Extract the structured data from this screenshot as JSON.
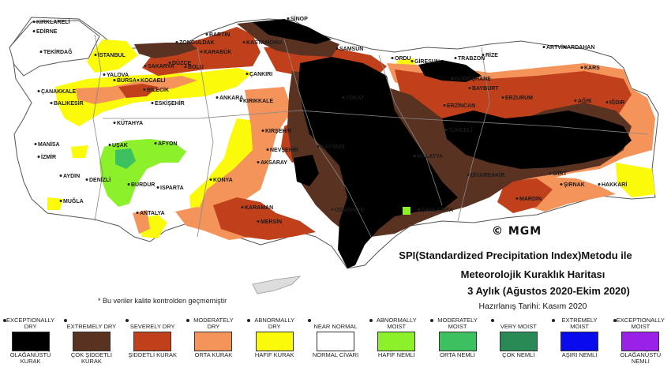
{
  "map": {
    "cities": [
      {
        "name": "KIRKLARELİ",
        "name_key": "c0"
      },
      {
        "name": "EDİRNE",
        "name_key": "c1"
      },
      {
        "name": "TEKİRDAĞ",
        "name_key": "c2"
      },
      {
        "name": "İSTANBUL",
        "name_key": "c3"
      },
      {
        "name": "ÇANAKKALE",
        "name_key": "c4"
      },
      {
        "name": "BALIKESİR",
        "name_key": "c5"
      },
      {
        "name": "BURSA",
        "name_key": "c6"
      },
      {
        "name": "YALOVA",
        "name_key": "c7"
      },
      {
        "name": "KOCAELİ",
        "name_key": "c8"
      },
      {
        "name": "SAKARYA",
        "name_key": "c9"
      },
      {
        "name": "DÜZCE",
        "name_key": "c10"
      },
      {
        "name": "BOLU",
        "name_key": "c11"
      },
      {
        "name": "BİLECİK",
        "name_key": "c12"
      },
      {
        "name": "ESKİŞEHİR",
        "name_key": "c13"
      },
      {
        "name": "KÜTAHYA",
        "name_key": "c14"
      },
      {
        "name": "MANİSA",
        "name_key": "c15"
      },
      {
        "name": "İZMİR",
        "name_key": "c16"
      },
      {
        "name": "AYDIN",
        "name_key": "c17"
      },
      {
        "name": "MUĞLA",
        "name_key": "c18"
      },
      {
        "name": "DENİZLİ",
        "name_key": "c19"
      },
      {
        "name": "UŞAK",
        "name_key": "c20"
      },
      {
        "name": "AFYON",
        "name_key": "c21"
      },
      {
        "name": "BURDUR",
        "name_key": "c22"
      },
      {
        "name": "ISPARTA",
        "name_key": "c23"
      },
      {
        "name": "ANTALYA",
        "name_key": "c24"
      },
      {
        "name": "KONYA",
        "name_key": "c25"
      },
      {
        "name": "KARAMAN",
        "name_key": "c26"
      },
      {
        "name": "MERSİN",
        "name_key": "c27"
      },
      {
        "name": "ANKARA",
        "name_key": "c28"
      },
      {
        "name": "ZONGULDAK",
        "name_key": "c29"
      },
      {
        "name": "BARTIN",
        "name_key": "c30"
      },
      {
        "name": "KARABÜK",
        "name_key": "c31"
      },
      {
        "name": "KASTAMONU",
        "name_key": "c32"
      },
      {
        "name": "SİNOP",
        "name_key": "c33"
      },
      {
        "name": "SAMSUN",
        "name_key": "c34"
      },
      {
        "name": "ÇANKIRI",
        "name_key": "c35"
      },
      {
        "name": "KIRIKKALE",
        "name_key": "c36"
      },
      {
        "name": "KIRŞEHİR",
        "name_key": "c37"
      },
      {
        "name": "NEVŞEHİR",
        "name_key": "c38"
      },
      {
        "name": "AKSARAY",
        "name_key": "c39"
      },
      {
        "name": "KAYSERİ",
        "name_key": "c40"
      },
      {
        "name": "TOKAT",
        "name_key": "c41"
      },
      {
        "name": "ORDU",
        "name_key": "c42"
      },
      {
        "name": "GİRESUN",
        "name_key": "c43"
      },
      {
        "name": "TRABZON",
        "name_key": "c44"
      },
      {
        "name": "RİZE",
        "name_key": "c45"
      },
      {
        "name": "ARTVİN",
        "name_key": "c46"
      },
      {
        "name": "ARDAHAN",
        "name_key": "c47"
      },
      {
        "name": "KARS",
        "name_key": "c48"
      },
      {
        "name": "GÜMÜŞHANE",
        "name_key": "c49"
      },
      {
        "name": "BAYBURT",
        "name_key": "c50"
      },
      {
        "name": "ERZURUM",
        "name_key": "c51"
      },
      {
        "name": "ERZİNCAN",
        "name_key": "c52"
      },
      {
        "name": "AĞRI",
        "name_key": "c53"
      },
      {
        "name": "IĞDIR",
        "name_key": "c54"
      },
      {
        "name": "TUNCELİ",
        "name_key": "c55"
      },
      {
        "name": "MALATYA",
        "name_key": "c56"
      },
      {
        "name": "DİYARBAKIR",
        "name_key": "c57"
      },
      {
        "name": "SİİRT",
        "name_key": "c58"
      },
      {
        "name": "ŞIRNAK",
        "name_key": "c59"
      },
      {
        "name": "HAKKARİ",
        "name_key": "c60"
      },
      {
        "name": "MARDİN",
        "name_key": "c61"
      },
      {
        "name": "ŞANLIURFA",
        "name_key": "c62"
      },
      {
        "name": "OSMANİYE",
        "name_key": "c63"
      }
    ]
  },
  "copyright": "© MGM",
  "title": {
    "line1": "SPI(Standardized Precipitation Index)Metodu ile",
    "line2": "Meteorolojik Kuraklık Haritası",
    "line3": "3 Aylık (Ağustos 2020-Ekim 2020)",
    "line4": "Hazırlanış Tarihi: Kasım 2020"
  },
  "footnote": "* Bu veriler kalite kontrolden geçmemiştir",
  "legend": [
    {
      "en": "EXCEPTIONALLY DRY",
      "tr": "OLAĞANÜSTÜ KURAK",
      "color": "#000000"
    },
    {
      "en": "EXTREMELY DRY",
      "tr": "ÇOK ŞİDDETLİ KURAK",
      "color": "#5a3222"
    },
    {
      "en": "SEVERELY DRY",
      "tr": "ŞİDDETLİ KURAK",
      "color": "#c0401c"
    },
    {
      "en": "MODERATELY DRY",
      "tr": "ORTA KURAK",
      "color": "#f4935a"
    },
    {
      "en": "ABNORMALLY DRY",
      "tr": "HAFİF KURAK",
      "color": "#fafa0a"
    },
    {
      "en": "NEAR NORMAL",
      "tr": "NORMAL CİVARI",
      "color": "#ffffff"
    },
    {
      "en": "ABNORMALLY MOIST",
      "tr": "HAFİF NEMLİ",
      "color": "#8cf02a"
    },
    {
      "en": "MODERATELY MOIST",
      "tr": "ORTA NEMLİ",
      "color": "#3cc060"
    },
    {
      "en": "VERY MOIST",
      "tr": "ÇOK NEMLİ",
      "color": "#2a8a55"
    },
    {
      "en": "EXTREMELY MOIST",
      "tr": "AŞIRI NEMLİ",
      "color": "#0a0aee"
    },
    {
      "en": "EXCEPTIONALLY MOIST",
      "tr": "OLAĞANÜSTÜ NEMLİ",
      "color": "#9a22e8"
    }
  ]
}
